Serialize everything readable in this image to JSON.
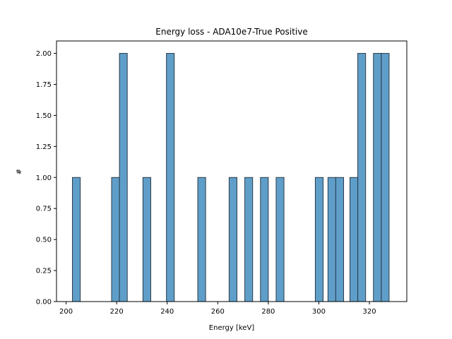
{
  "chart_data": {
    "type": "bar",
    "title": "Energy loss - ADA10e7-True Positive",
    "xlabel": "Energy [keV]",
    "ylabel": "#",
    "xlim": [
      196.2,
      334.8
    ],
    "ylim": [
      0,
      2.1
    ],
    "xticks": [
      200,
      220,
      240,
      260,
      280,
      300,
      320
    ],
    "yticks": [
      "0.00",
      "0.25",
      "0.50",
      "0.75",
      "1.00",
      "1.25",
      "1.50",
      "1.75",
      "2.00"
    ],
    "grid": false,
    "bar_color": "#5f9ec9",
    "edge_color": "#2b3a47",
    "bins": [
      {
        "x0": 202.5,
        "x1": 205.6,
        "count": 1
      },
      {
        "x0": 218.0,
        "x1": 221.1,
        "count": 1
      },
      {
        "x0": 221.1,
        "x1": 224.2,
        "count": 2
      },
      {
        "x0": 230.4,
        "x1": 233.5,
        "count": 1
      },
      {
        "x0": 239.7,
        "x1": 242.8,
        "count": 2
      },
      {
        "x0": 252.1,
        "x1": 255.2,
        "count": 1
      },
      {
        "x0": 264.5,
        "x1": 267.6,
        "count": 1
      },
      {
        "x0": 270.7,
        "x1": 273.8,
        "count": 1
      },
      {
        "x0": 276.9,
        "x1": 280.0,
        "count": 1
      },
      {
        "x0": 283.1,
        "x1": 286.2,
        "count": 1
      },
      {
        "x0": 298.6,
        "x1": 301.7,
        "count": 1
      },
      {
        "x0": 303.6,
        "x1": 306.7,
        "count": 1
      },
      {
        "x0": 306.7,
        "x1": 309.8,
        "count": 1
      },
      {
        "x0": 312.3,
        "x1": 315.4,
        "count": 1
      },
      {
        "x0": 315.4,
        "x1": 318.5,
        "count": 2
      },
      {
        "x0": 321.6,
        "x1": 324.7,
        "count": 2
      },
      {
        "x0": 324.7,
        "x1": 327.8,
        "count": 2
      }
    ]
  }
}
